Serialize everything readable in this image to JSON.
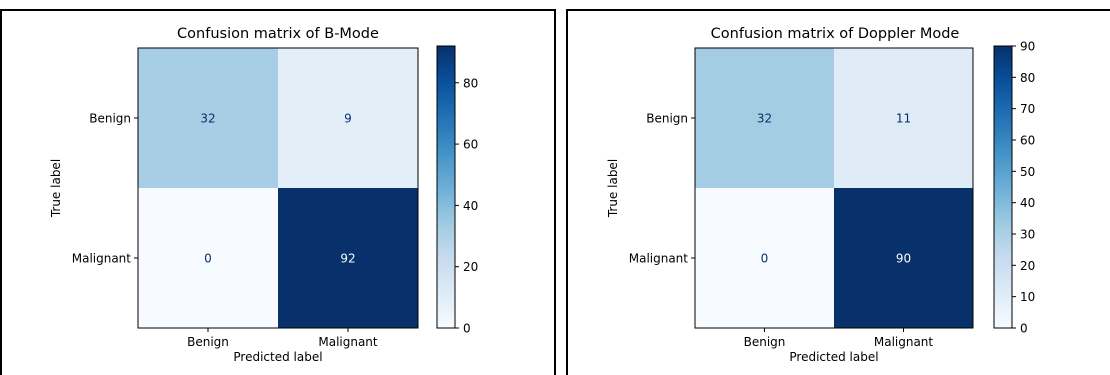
{
  "chart_data": [
    {
      "type": "heatmap",
      "title": "Confusion matrix of B-Mode",
      "xlabel": "Predicted label",
      "ylabel": "True label",
      "x_categories": [
        "Benign",
        "Malignant"
      ],
      "y_categories": [
        "Benign",
        "Malignant"
      ],
      "values": [
        [
          32,
          9
        ],
        [
          0,
          92
        ]
      ],
      "colorbar": {
        "min": 0,
        "max": 92,
        "ticks": [
          0,
          20,
          40,
          60,
          80
        ]
      },
      "colormap": "Blues",
      "grid": false
    },
    {
      "type": "heatmap",
      "title": "Confusion matrix of Doppler Mode",
      "xlabel": "Predicted label",
      "ylabel": "True label",
      "x_categories": [
        "Benign",
        "Malignant"
      ],
      "y_categories": [
        "Benign",
        "Malignant"
      ],
      "values": [
        [
          32,
          11
        ],
        [
          0,
          90
        ]
      ],
      "colorbar": {
        "min": 0,
        "max": 90,
        "ticks": [
          0,
          10,
          20,
          30,
          40,
          50,
          60,
          70,
          80,
          90
        ]
      },
      "colormap": "Blues",
      "grid": false
    }
  ]
}
